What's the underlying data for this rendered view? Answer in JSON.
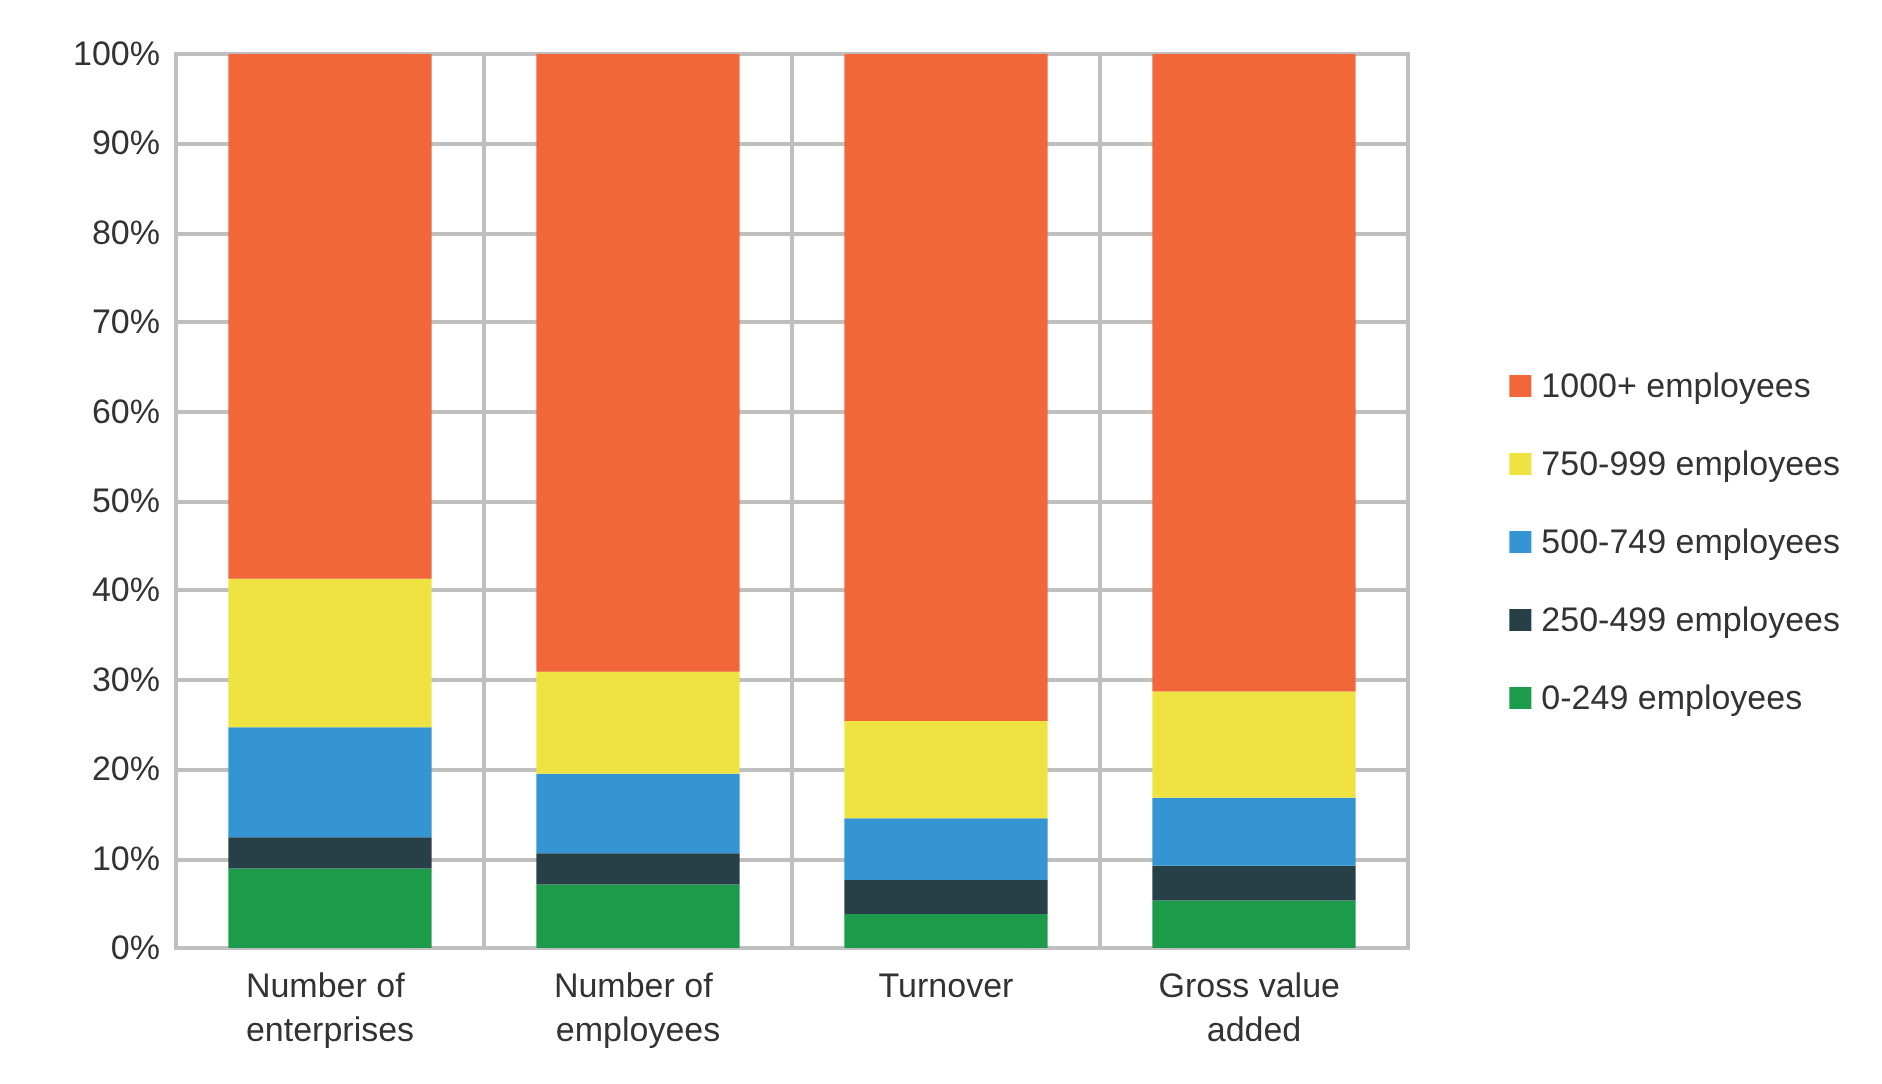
{
  "chart_data": {
    "type": "bar",
    "stacked": true,
    "categories": [
      "Number of enterprises",
      "Number of employees",
      "Turnover",
      "Gross value added"
    ],
    "series": [
      {
        "name": "0-249 employees",
        "color": "#1c9c4a",
        "values": [
          8.9,
          7.1,
          3.8,
          5.3
        ]
      },
      {
        "name": "250-499 employees",
        "color": "#273f47",
        "values": [
          3.5,
          3.5,
          3.8,
          3.9
        ]
      },
      {
        "name": "500-749 employees",
        "color": "#3595d3",
        "values": [
          12.3,
          8.9,
          6.9,
          7.6
        ]
      },
      {
        "name": "750-999 employees",
        "color": "#efe342",
        "values": [
          16.6,
          11.4,
          10.9,
          11.9
        ]
      },
      {
        "name": "1000+ employees",
        "color": "#f26739",
        "values": [
          58.7,
          69.1,
          74.6,
          71.3
        ]
      }
    ],
    "ylim": [
      0,
      100
    ],
    "yticks": [
      {
        "value": 0,
        "label": "0%"
      },
      {
        "value": 10,
        "label": "10%"
      },
      {
        "value": 20,
        "label": "20%"
      },
      {
        "value": 30,
        "label": "30%"
      },
      {
        "value": 40,
        "label": "40%"
      },
      {
        "value": 50,
        "label": "50%"
      },
      {
        "value": 60,
        "label": "60%"
      },
      {
        "value": 70,
        "label": "70%"
      },
      {
        "value": 80,
        "label": "80%"
      },
      {
        "value": 90,
        "label": "90%"
      },
      {
        "value": 100,
        "label": "100%"
      }
    ],
    "grid": true,
    "legend": "right"
  }
}
